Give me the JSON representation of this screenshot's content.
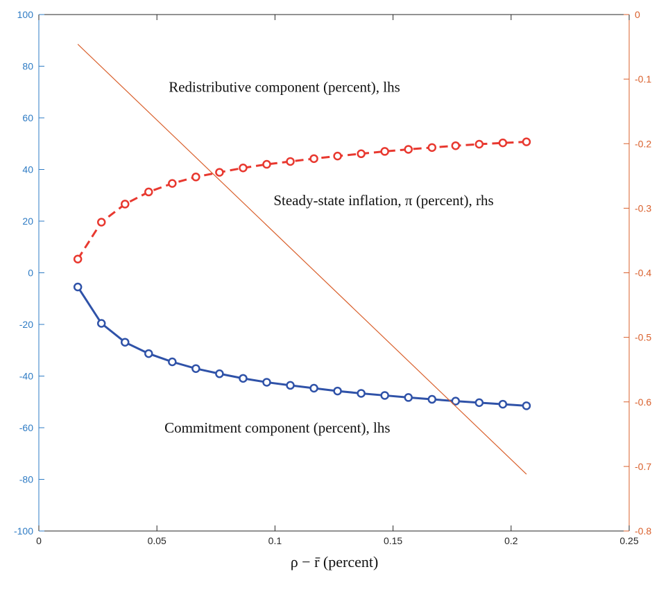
{
  "chart_data": {
    "type": "line",
    "xlabel": "ρ − r̄ (percent)",
    "xlim": [
      0,
      0.25
    ],
    "x_ticks": [
      "0",
      "0.05",
      "0.1",
      "0.15",
      "0.2",
      "0.25"
    ],
    "x_tick_values": [
      0,
      0.05,
      0.1,
      0.15,
      0.2,
      0.25
    ],
    "y_left": {
      "ylim": [
        -100,
        100
      ],
      "ticks": [
        "100",
        "80",
        "60",
        "40",
        "20",
        "0",
        "-20",
        "-40",
        "-60",
        "-80",
        "-100"
      ],
      "tick_values": [
        100,
        80,
        60,
        40,
        20,
        0,
        -20,
        -40,
        -60,
        -80,
        -100
      ],
      "color": "#2e7bc4"
    },
    "y_right": {
      "ylim": [
        -0.8,
        0
      ],
      "ticks": [
        "0",
        "-0.1",
        "-0.2",
        "-0.3",
        "-0.4",
        "-0.5",
        "-0.6",
        "-0.7",
        "-0.8"
      ],
      "tick_values": [
        0,
        -0.1,
        -0.2,
        -0.3,
        -0.4,
        -0.5,
        -0.6,
        -0.7,
        -0.8
      ],
      "color": "#d95f2b"
    },
    "x": [
      0.0165,
      0.0265,
      0.0365,
      0.0465,
      0.0565,
      0.0665,
      0.0765,
      0.0865,
      0.0965,
      0.1065,
      0.1165,
      0.1265,
      0.1365,
      0.1465,
      0.1565,
      0.1665,
      0.1765,
      0.1865,
      0.1965,
      0.2065
    ],
    "series": [
      {
        "axis": "left",
        "style": "dashed-circle",
        "color": "#e8382f",
        "values": [
          5.3,
          19.6,
          26.6,
          31.3,
          34.6,
          37.1,
          38.9,
          40.6,
          42.0,
          43.1,
          44.2,
          45.2,
          46.1,
          47.0,
          47.8,
          48.5,
          49.2,
          49.8,
          50.3,
          50.7
        ]
      },
      {
        "axis": "left",
        "style": "solid-circle",
        "color": "#2f52a8",
        "values": [
          -5.5,
          -19.6,
          -26.9,
          -31.3,
          -34.5,
          -37.1,
          -39.1,
          -40.9,
          -42.4,
          -43.6,
          -44.7,
          -45.8,
          -46.7,
          -47.5,
          -48.3,
          -49.0,
          -49.7,
          -50.3,
          -50.9,
          -51.5
        ]
      },
      {
        "axis": "right",
        "style": "solid-thin",
        "color": "#d95f2b",
        "x": [
          0.0165,
          0.2065
        ],
        "values": [
          -0.046,
          -0.712
        ]
      }
    ],
    "annotations": [
      {
        "text": "Redistributive component (percent), lhs",
        "x": 0.104,
        "y_left": 72
      },
      {
        "text": "Steady-state inflation, π (percent), rhs",
        "x": 0.146,
        "y_left": 28
      },
      {
        "text": "Commitment component (percent), lhs",
        "x": 0.101,
        "y_left": -60
      }
    ]
  }
}
